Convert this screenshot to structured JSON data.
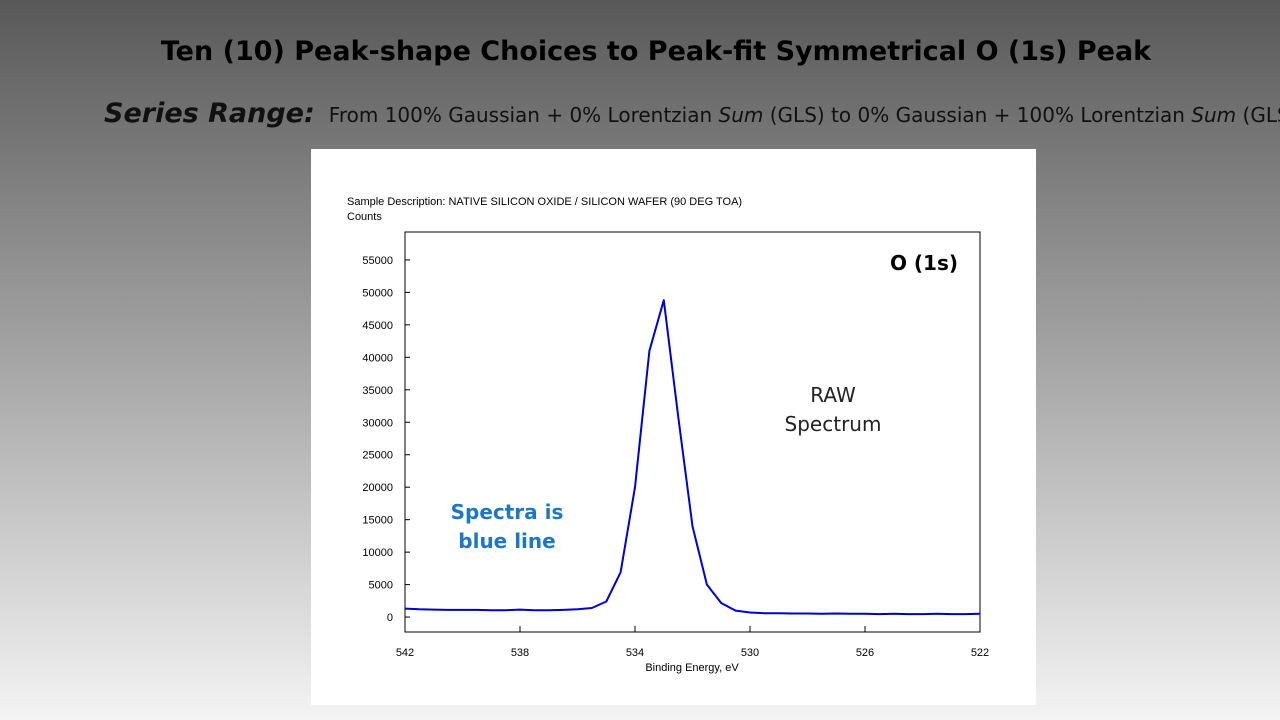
{
  "slide": {
    "title": "Ten (10) Peak-shape Choices to Peak-fit Symmetrical O (1s) Peak",
    "subtitle_lead": "Series Range:",
    "subtitle_parts": [
      {
        "text": "From 100% Gaussian + 0% Lorentzian ",
        "italic": false
      },
      {
        "text": "Sum",
        "italic": true
      },
      {
        "text": " (GLS) to 0% Gaussian + 100% Lorentzian ",
        "italic": false
      },
      {
        "text": "Sum",
        "italic": true
      },
      {
        "text": " (GLS)",
        "italic": false
      }
    ]
  },
  "chart_data": {
    "type": "line",
    "description": "Sample Description:  NATIVE SILICON OXIDE / SILICON WAFER (90 DEG TOA)",
    "y_label": "Counts",
    "x_label": "Binding Energy, eV",
    "x": [
      542,
      541.5,
      541,
      540.5,
      540,
      539.5,
      539,
      538.5,
      538,
      537.5,
      537,
      536.5,
      536,
      535.5,
      535,
      534.5,
      534,
      533.5,
      533,
      532.5,
      532,
      531.5,
      531,
      530.5,
      530,
      529.5,
      529,
      528.5,
      528,
      527.5,
      527,
      526.5,
      526,
      525.5,
      525,
      524.5,
      524,
      523.5,
      523,
      522.5,
      522
    ],
    "series": [
      {
        "color": "#0000cc",
        "values": [
          1300,
          1200,
          1150,
          1100,
          1100,
          1100,
          1050,
          1050,
          1150,
          1050,
          1050,
          1100,
          1200,
          1400,
          2400,
          6900,
          20000,
          41000,
          48800,
          31000,
          14000,
          5000,
          2150,
          1000,
          700,
          600,
          600,
          550,
          550,
          500,
          550,
          500,
          500,
          450,
          500,
          450,
          450,
          500,
          450,
          450,
          500
        ]
      }
    ],
    "xlim": [
      542,
      522
    ],
    "xticks": [
      542,
      538,
      534,
      530,
      526,
      522
    ],
    "ylim": [
      -2300,
      59300
    ],
    "yticks": [
      0,
      5000,
      10000,
      15000,
      20000,
      25000,
      30000,
      35000,
      40000,
      45000,
      50000,
      55000
    ],
    "annotations": [
      {
        "lines": [
          "O (1s)"
        ],
        "color": "#000000"
      },
      {
        "lines": [
          "RAW",
          "Spectrum"
        ],
        "color": "#222222"
      },
      {
        "lines": [
          "Spectra is",
          "blue line"
        ],
        "color": "#1f77c4"
      }
    ]
  }
}
